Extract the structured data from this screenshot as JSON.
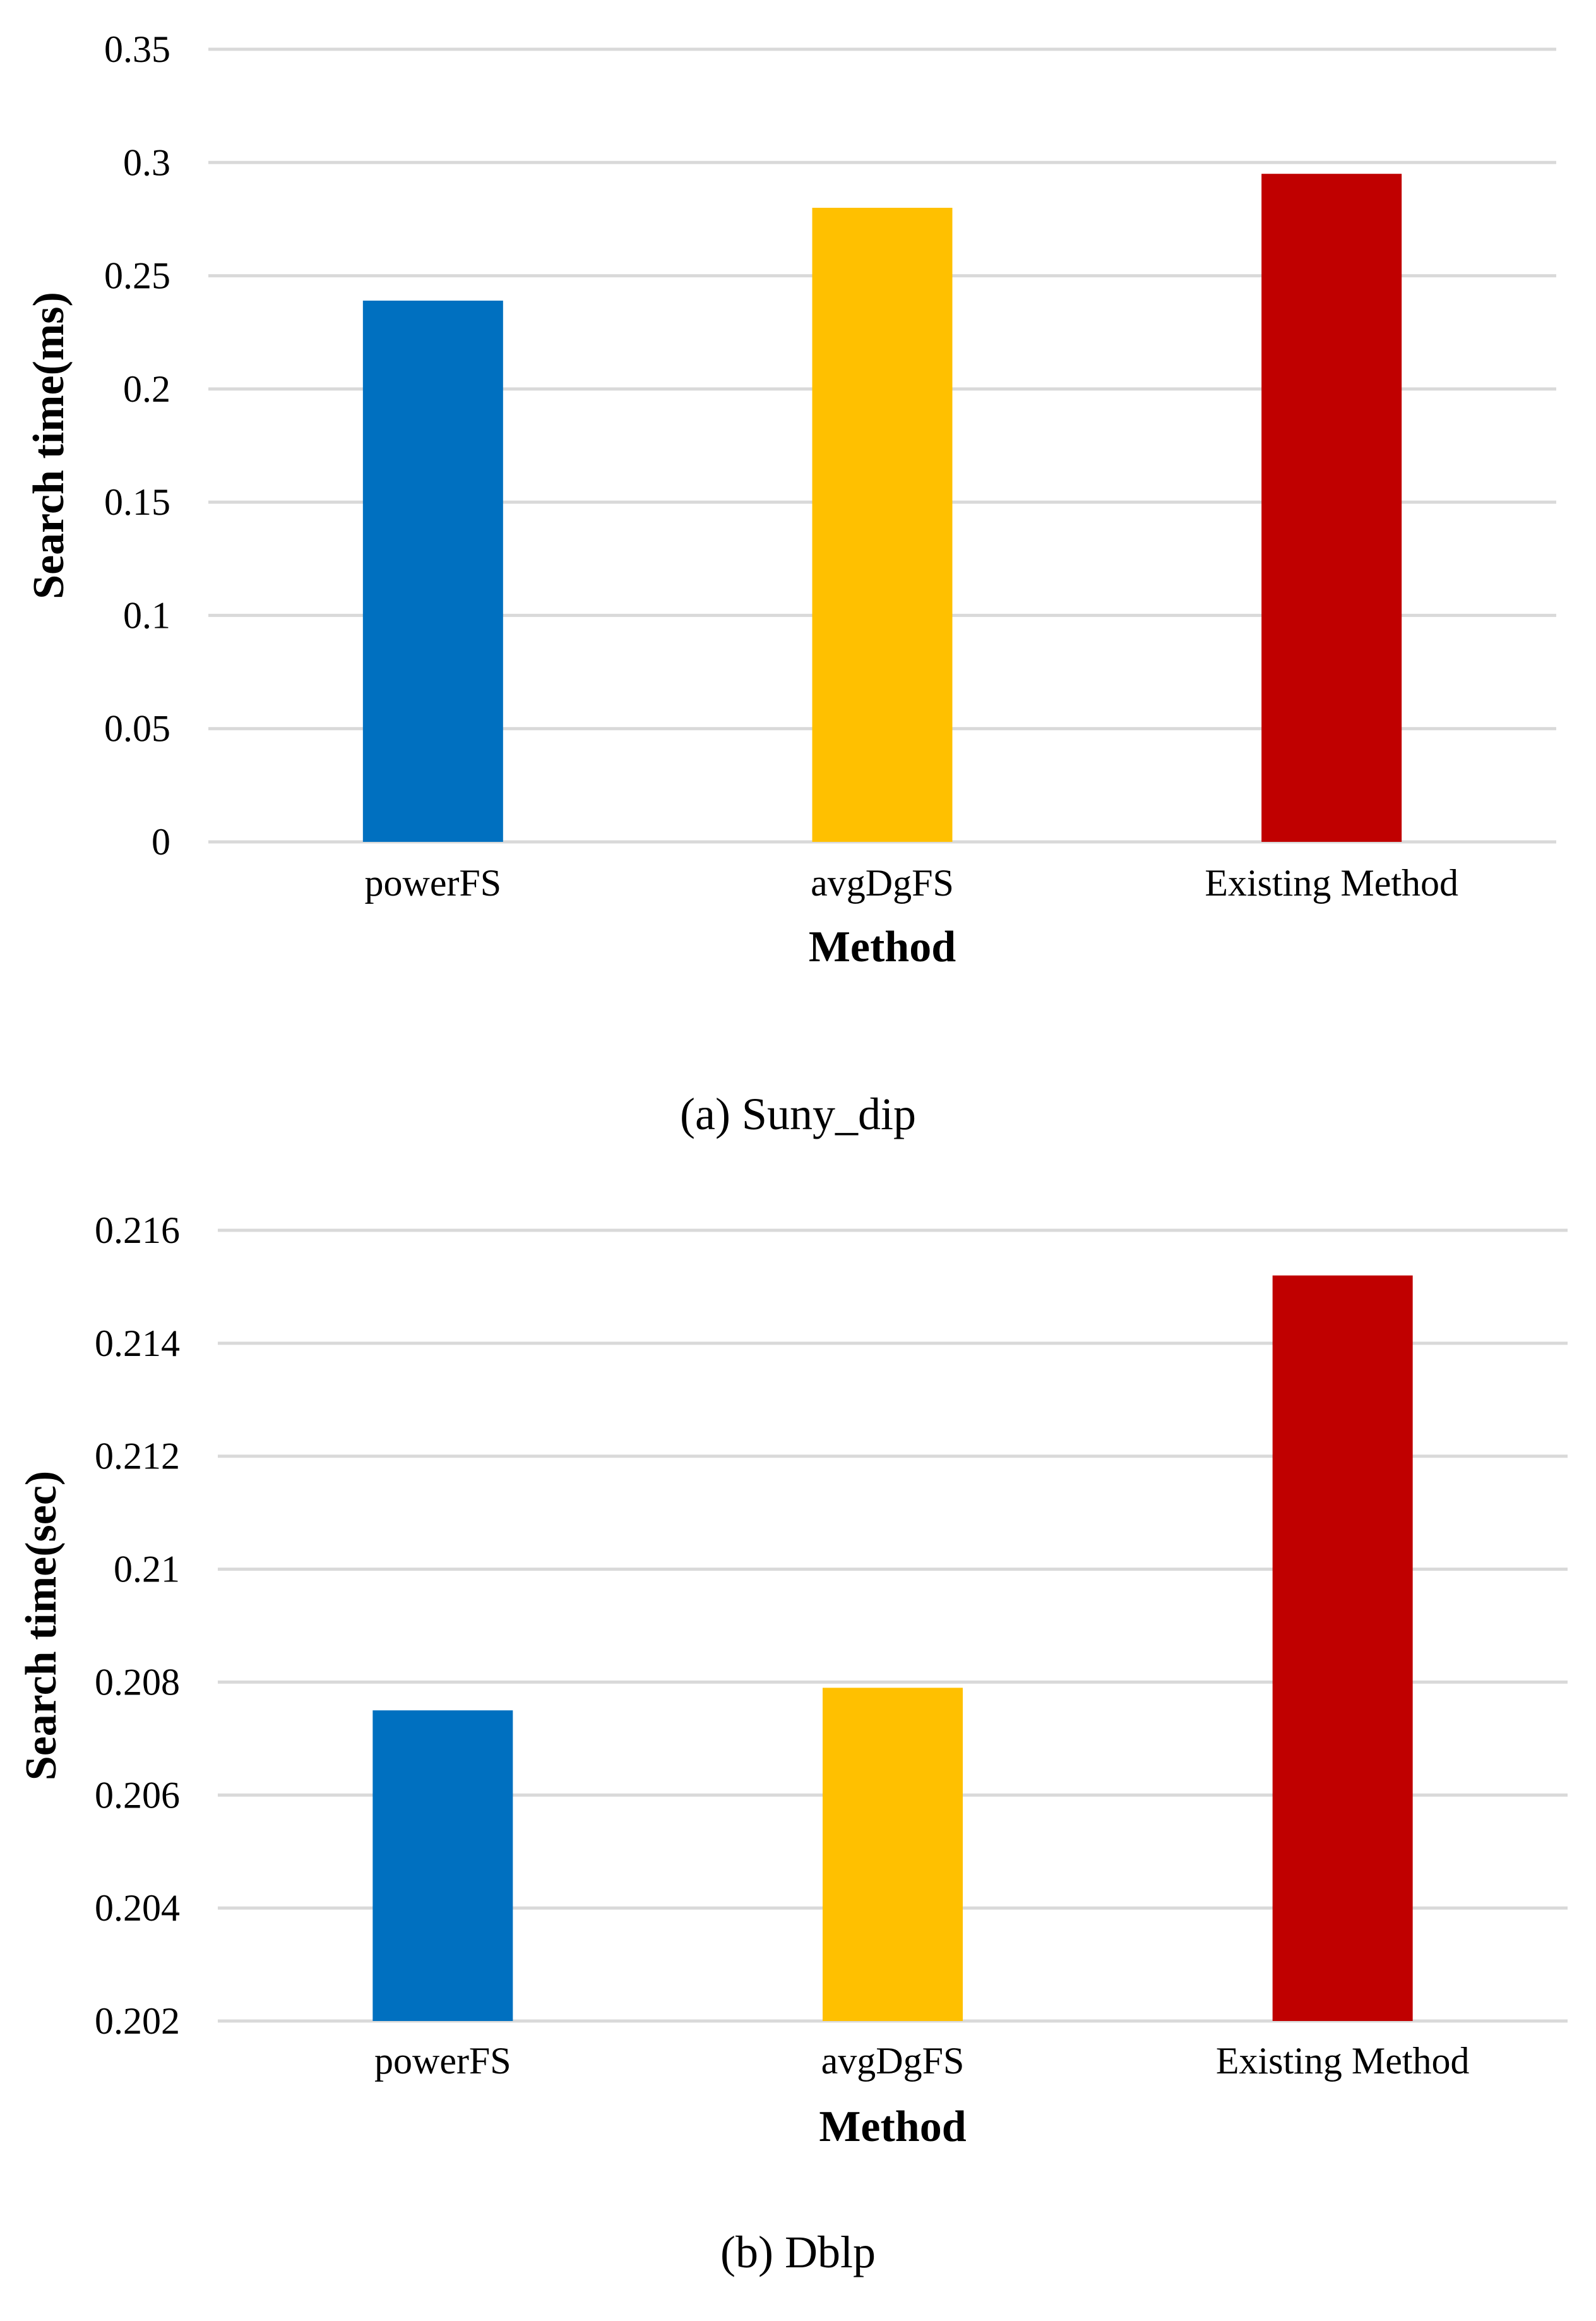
{
  "chart_data": [
    {
      "type": "bar",
      "caption": "(a) Suny_dip",
      "xlabel": "Method",
      "ylabel": "Search time(ms)",
      "categories": [
        "powerFS",
        "avgDgFS",
        "Existing Method"
      ],
      "values": [
        0.239,
        0.28,
        0.295
      ],
      "colors": [
        "#0070c0",
        "#ffc000",
        "#c00000"
      ],
      "ylim": [
        0,
        0.35
      ],
      "yticks": [
        0,
        0.05,
        0.1,
        0.15,
        0.2,
        0.25,
        0.3,
        0.35
      ],
      "ytick_labels": [
        "0",
        "0.05",
        "0.1",
        "0.15",
        "0.2",
        "0.25",
        "0.3",
        "0.35"
      ],
      "grid": true,
      "legend": "none"
    },
    {
      "type": "bar",
      "caption": "(b) Dblp",
      "xlabel": "Method",
      "ylabel": "Search time(sec)",
      "categories": [
        "powerFS",
        "avgDgFS",
        "Existing Method"
      ],
      "values": [
        0.2075,
        0.2079,
        0.2152
      ],
      "colors": [
        "#0070c0",
        "#ffc000",
        "#c00000"
      ],
      "ylim": [
        0.202,
        0.216
      ],
      "yticks": [
        0.202,
        0.204,
        0.206,
        0.208,
        0.21,
        0.212,
        0.214,
        0.216
      ],
      "ytick_labels": [
        "0.202",
        "0.204",
        "0.206",
        "0.208",
        "0.21",
        "0.212",
        "0.214",
        "0.216"
      ],
      "grid": true,
      "legend": "none"
    }
  ]
}
